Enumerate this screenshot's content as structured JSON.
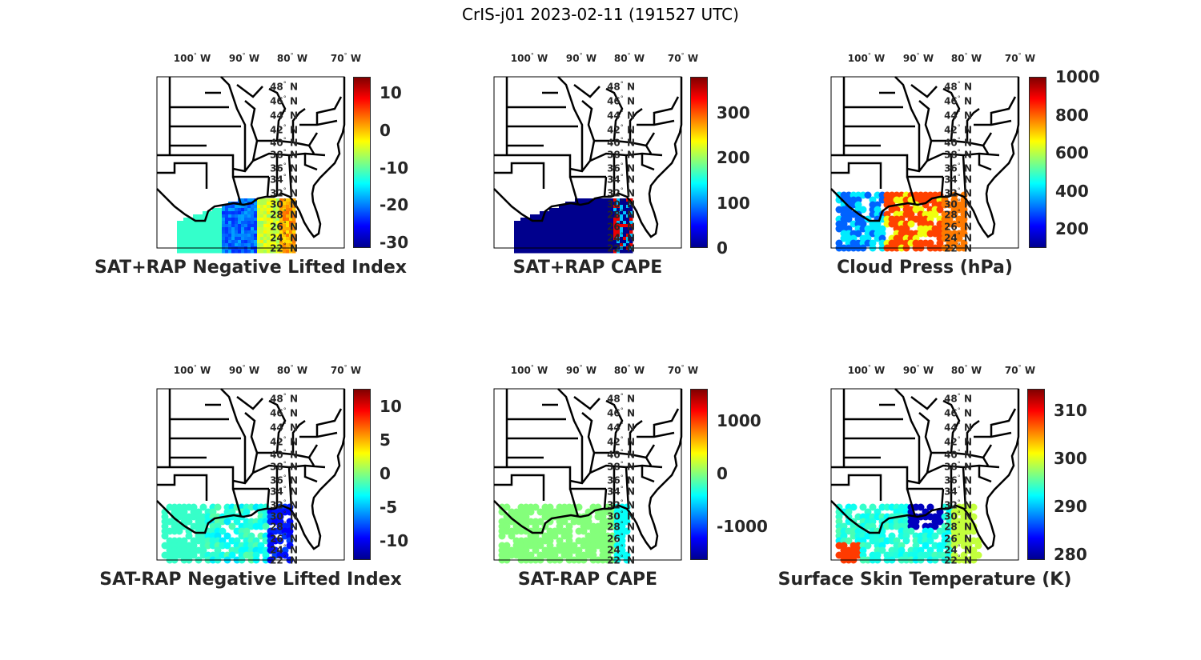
{
  "title": "CrIS-j01 2023-02-11 (191527 UTC)",
  "lon_labels": [
    "100",
    "90",
    "80",
    "70"
  ],
  "lon_suffix": "W",
  "lat_labels": [
    "48",
    "46",
    "44",
    "42",
    "40",
    "38",
    "36",
    "34",
    "32",
    "30",
    "28",
    "26",
    "24",
    "22"
  ],
  "lat_suffix": "N",
  "degree_symbol": "°",
  "panels": [
    {
      "title": "SAT+RAP Negative Lifted Index",
      "clim": [
        -31.5,
        14.3
      ],
      "ticks": [
        "10",
        "0",
        "-10",
        "-20",
        "-30"
      ],
      "tick_values": [
        10,
        0,
        -10,
        -20,
        -30
      ],
      "field": "li_total"
    },
    {
      "title": "SAT+RAP CAPE",
      "clim": [
        0,
        380
      ],
      "ticks": [
        "300",
        "200",
        "100",
        "0"
      ],
      "tick_values": [
        300,
        200,
        100,
        0
      ],
      "field": "cape_total"
    },
    {
      "title": "Cloud Press (hPa)",
      "clim": [
        100,
        1000
      ],
      "ticks": [
        "1000",
        "800",
        "600",
        "400",
        "200"
      ],
      "tick_values": [
        1000,
        800,
        600,
        400,
        200
      ],
      "field": "cloud_press"
    },
    {
      "title": "SAT-RAP Negative Lifted Index",
      "clim": [
        -12.9,
        12.6
      ],
      "ticks": [
        "10",
        "5",
        "0",
        "-5",
        "-10"
      ],
      "tick_values": [
        10,
        5,
        0,
        -5,
        -10
      ],
      "field": "li_diff"
    },
    {
      "title": "SAT-RAP CAPE",
      "clim": [
        -1636,
        1606
      ],
      "ticks": [
        "1000",
        "0",
        "-1000"
      ],
      "tick_values": [
        1000,
        0,
        -1000
      ],
      "field": "cape_diff"
    },
    {
      "title": "Surface Skin Temperature (K)",
      "clim": [
        278.8,
        314.5
      ],
      "ticks": [
        "310",
        "300",
        "290",
        "280"
      ],
      "tick_values": [
        310,
        300,
        290,
        280
      ],
      "field": "skin_temp"
    }
  ]
}
